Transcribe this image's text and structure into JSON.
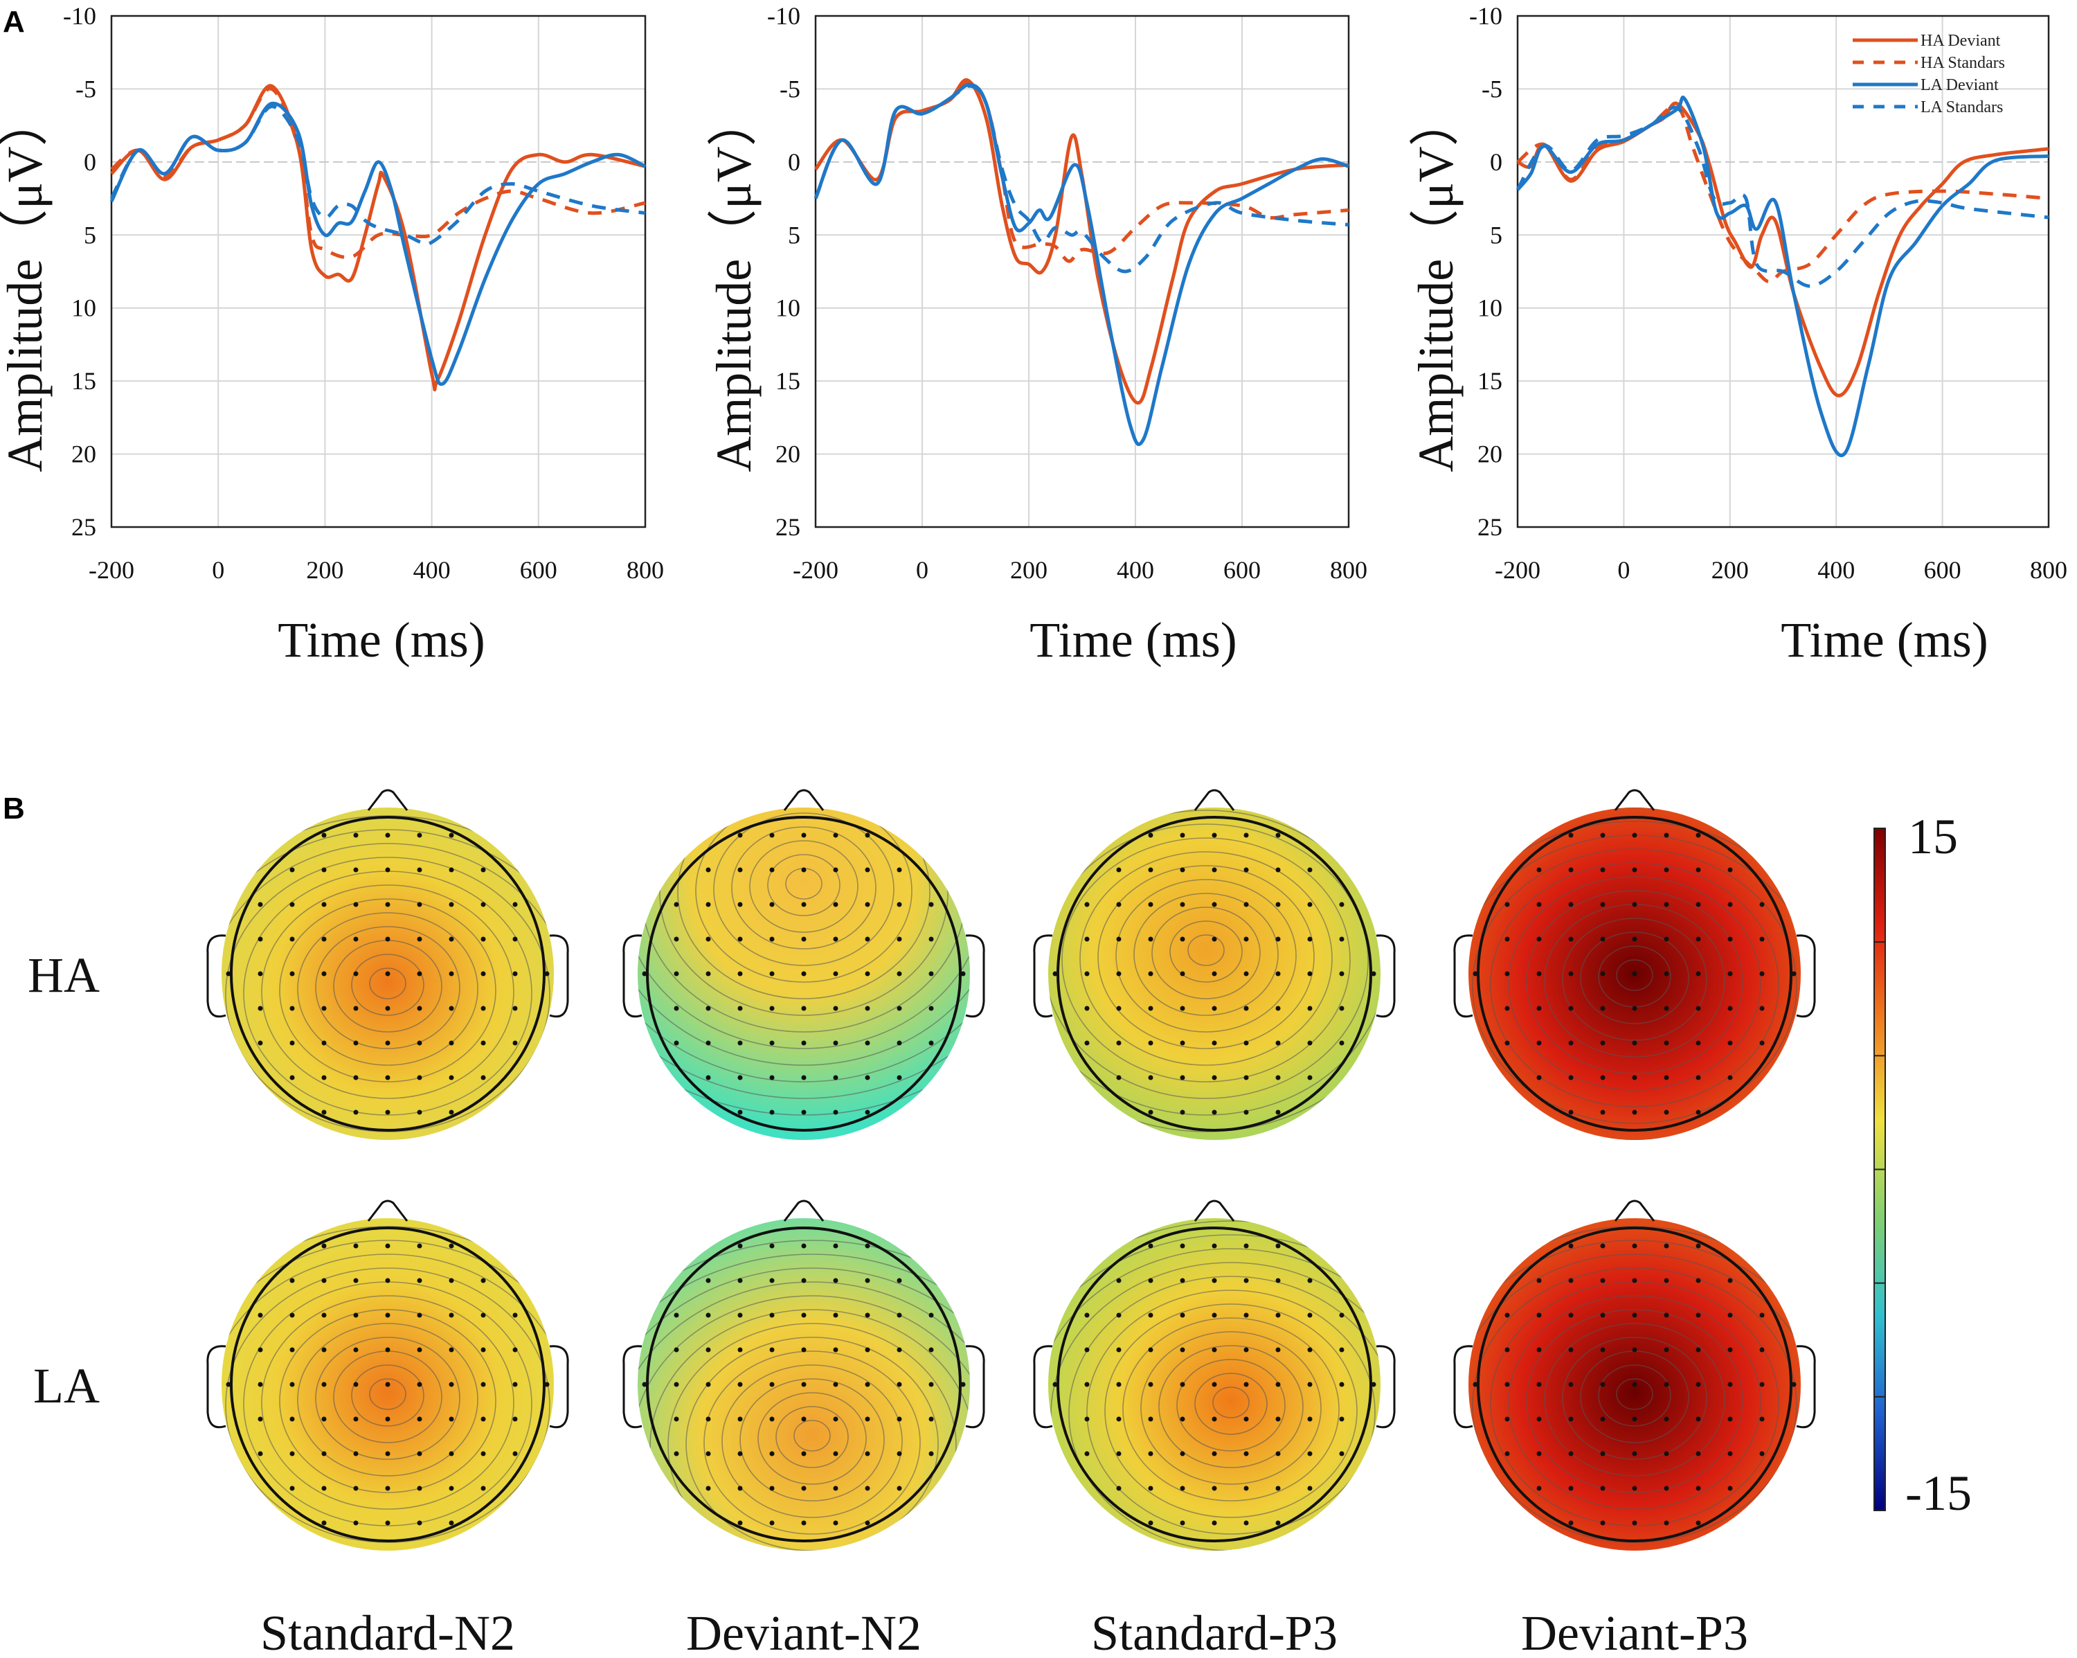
{
  "panel_labels": {
    "a": "A",
    "b": "B"
  },
  "chart_data": [
    {
      "type": "line",
      "xlabel": "Time (ms)",
      "ylabel": "Amplitude（μV）",
      "xlim": [
        -200,
        800
      ],
      "ylim": [
        -10,
        25
      ],
      "y_inverted": true,
      "grid": true,
      "xticks": [
        "-200",
        "0",
        "200",
        "400",
        "600",
        "800"
      ],
      "yticks": [
        "-10",
        "-5",
        "0",
        "5",
        "10",
        "15",
        "20",
        "25"
      ],
      "series": [
        {
          "name": "HA Deviant",
          "color": "#e0501e",
          "dash": false,
          "x": [
            -200,
            -150,
            -100,
            -50,
            0,
            50,
            100,
            150,
            175,
            200,
            225,
            250,
            275,
            300,
            310,
            350,
            400,
            410,
            450,
            500,
            550,
            600,
            650,
            700,
            800
          ],
          "y": [
            0.8,
            -0.8,
            1.2,
            -1,
            -1.5,
            -2.5,
            -5.2,
            -1,
            6,
            7.8,
            7.7,
            8,
            5,
            1.5,
            1,
            5,
            14.5,
            15,
            11,
            5,
            0.5,
            -0.5,
            0,
            -0.5,
            0.3
          ]
        },
        {
          "name": "HA Standars",
          "color": "#e0501e",
          "dash": true,
          "x": [
            -200,
            -150,
            -100,
            -50,
            0,
            50,
            100,
            150,
            175,
            200,
            250,
            300,
            350,
            400,
            450,
            500,
            550,
            600,
            700,
            800
          ],
          "y": [
            0.5,
            -0.8,
            1,
            -1,
            -1.5,
            -2.5,
            -5,
            -1,
            5,
            6,
            6.5,
            5,
            5,
            5,
            3.5,
            2.5,
            2,
            2.5,
            3.5,
            2.8
          ]
        },
        {
          "name": "LA Deviant",
          "color": "#1f78c8",
          "dash": false,
          "x": [
            -200,
            -150,
            -100,
            -50,
            0,
            50,
            100,
            150,
            175,
            200,
            225,
            250,
            275,
            300,
            325,
            350,
            400,
            420,
            450,
            500,
            550,
            600,
            650,
            700,
            750,
            800
          ],
          "y": [
            2.7,
            -0.8,
            0.8,
            -1.7,
            -0.8,
            -1.3,
            -4,
            -2,
            3,
            5,
            4.2,
            4.1,
            2,
            0,
            2,
            6,
            13.5,
            15.2,
            13,
            8,
            4,
            1.5,
            0.8,
            0,
            -0.5,
            0.3
          ]
        },
        {
          "name": "LA Standars",
          "color": "#1f78c8",
          "dash": true,
          "x": [
            -200,
            -150,
            -100,
            -50,
            0,
            50,
            100,
            150,
            175,
            200,
            225,
            250,
            275,
            300,
            350,
            380,
            400,
            450,
            500,
            550,
            600,
            700,
            800
          ],
          "y": [
            2.5,
            -0.8,
            0.8,
            -1.7,
            -0.8,
            -1.3,
            -3.8,
            -1.5,
            2.5,
            3.8,
            3,
            3,
            4,
            4.5,
            5,
            5.5,
            5.5,
            4,
            2,
            1.5,
            2,
            3,
            3.5
          ]
        }
      ]
    },
    {
      "type": "line",
      "xlabel": "Time (ms)",
      "ylabel": "Amplitude（μV）",
      "xlim": [
        -200,
        800
      ],
      "ylim": [
        -10,
        25
      ],
      "y_inverted": true,
      "grid": true,
      "xticks": [
        "-200",
        "0",
        "200",
        "400",
        "600",
        "800"
      ],
      "yticks": [
        "-10",
        "-5",
        "0",
        "5",
        "10",
        "15",
        "20",
        "25"
      ],
      "series": [
        {
          "name": "HA Deviant",
          "color": "#e0501e",
          "dash": false,
          "x": [
            -200,
            -150,
            -85,
            -50,
            0,
            50,
            85,
            120,
            150,
            175,
            200,
            225,
            250,
            280,
            300,
            330,
            370,
            405,
            430,
            470,
            500,
            550,
            600,
            700,
            800
          ],
          "y": [
            0.5,
            -1.5,
            1.2,
            -3,
            -3.5,
            -4.2,
            -5.6,
            -3,
            3,
            6.5,
            7,
            7.5,
            5,
            -1.7,
            1,
            8,
            14,
            16.5,
            14,
            8,
            4,
            2,
            1.5,
            0.5,
            0.2
          ]
        },
        {
          "name": "HA Standars",
          "color": "#e0501e",
          "dash": true,
          "x": [
            -200,
            -150,
            -85,
            -50,
            0,
            50,
            85,
            120,
            150,
            175,
            225,
            250,
            275,
            300,
            350,
            400,
            450,
            500,
            600,
            650,
            700,
            800
          ],
          "y": [
            0.5,
            -1.5,
            1.2,
            -3,
            -3.5,
            -4.2,
            -5.4,
            -4,
            1,
            5.5,
            5.6,
            5.8,
            6.8,
            6,
            6.2,
            4.5,
            3,
            2.8,
            3,
            3.8,
            3.6,
            3.3
          ]
        },
        {
          "name": "LA Deviant",
          "color": "#1f78c8",
          "dash": false,
          "x": [
            -200,
            -150,
            -85,
            -50,
            0,
            50,
            90,
            120,
            150,
            175,
            200,
            220,
            240,
            285,
            310,
            350,
            390,
            415,
            450,
            500,
            550,
            600,
            650,
            700,
            750,
            800
          ],
          "y": [
            2.5,
            -1.5,
            1.5,
            -3.5,
            -3.3,
            -4.3,
            -5.3,
            -4,
            1,
            4.5,
            4.2,
            3.3,
            3.8,
            0.2,
            3,
            11,
            18,
            19,
            14,
            7,
            3.5,
            2.5,
            1.5,
            0.5,
            -0.2,
            0.3
          ]
        },
        {
          "name": "LA Standars",
          "color": "#1f78c8",
          "dash": true,
          "x": [
            -200,
            -150,
            -85,
            -50,
            0,
            50,
            90,
            120,
            150,
            175,
            200,
            225,
            250,
            280,
            300,
            340,
            380,
            420,
            470,
            550,
            600,
            700,
            800
          ],
          "y": [
            2.5,
            -1.5,
            1.5,
            -3.5,
            -3.3,
            -4.3,
            -5.2,
            -4,
            0.5,
            3,
            4,
            5.5,
            4.5,
            5,
            4.8,
            6.5,
            7.5,
            6.5,
            4,
            2.8,
            3.5,
            4,
            4.3
          ]
        }
      ]
    },
    {
      "type": "line",
      "xlabel": "Time (ms)",
      "ylabel": "Amplitude（μV）",
      "xlim": [
        -200,
        800
      ],
      "ylim": [
        -10,
        25
      ],
      "y_inverted": true,
      "grid": true,
      "legend": "top-right",
      "xticks": [
        "-200",
        "0",
        "200",
        "400",
        "600",
        "800"
      ],
      "yticks": [
        "-10",
        "-5",
        "0",
        "5",
        "10",
        "15",
        "20",
        "25"
      ],
      "series": [
        {
          "name": "HA Deviant",
          "color": "#e0501e",
          "dash": false,
          "x": [
            -200,
            -175,
            -150,
            -100,
            -50,
            0,
            50,
            75,
            100,
            140,
            160,
            190,
            210,
            240,
            260,
            285,
            320,
            370,
            405,
            440,
            480,
            520,
            560,
            600,
            640,
            700,
            800
          ],
          "y": [
            0,
            0.3,
            -1.2,
            1.3,
            -0.8,
            -1.4,
            -2.5,
            -3,
            -4,
            -2,
            0,
            4,
            5.5,
            7.2,
            5,
            4,
            9,
            14,
            16,
            14,
            9,
            5,
            3,
            1.5,
            0,
            -0.5,
            -0.9
          ]
        },
        {
          "name": "HA Standars",
          "color": "#e0501e",
          "dash": true,
          "x": [
            -200,
            -150,
            -100,
            -50,
            0,
            50,
            100,
            130,
            160,
            200,
            250,
            275,
            300,
            350,
            400,
            450,
            500,
            600,
            700,
            800
          ],
          "y": [
            0,
            -1.2,
            1.2,
            -1,
            -1.5,
            -2.5,
            -3.8,
            -1,
            2,
            5.5,
            7.5,
            8.2,
            7.5,
            7,
            5,
            3,
            2.2,
            2,
            2.2,
            2.5
          ]
        },
        {
          "name": "LA Deviant",
          "color": "#1f78c8",
          "dash": false,
          "x": [
            -200,
            -175,
            -150,
            -100,
            -50,
            0,
            50,
            100,
            115,
            150,
            175,
            200,
            230,
            250,
            285,
            320,
            370,
            415,
            460,
            500,
            550,
            600,
            650,
            700,
            800
          ],
          "y": [
            1.9,
            0.8,
            -1.1,
            0.7,
            -1.2,
            -1.5,
            -2.5,
            -3.6,
            -4.3,
            -1,
            3.5,
            3.5,
            3,
            4.6,
            2.7,
            9,
            17,
            20,
            14,
            8,
            5.5,
            3,
            1.5,
            -0.1,
            -0.4
          ]
        },
        {
          "name": "LA Standars",
          "color": "#1f78c8",
          "dash": true,
          "x": [
            -200,
            -150,
            -100,
            -50,
            0,
            50,
            100,
            140,
            170,
            200,
            230,
            250,
            300,
            350,
            400,
            450,
            500,
            550,
            600,
            650,
            800
          ],
          "y": [
            1.9,
            -1.1,
            0.6,
            -1.5,
            -1.8,
            -2.5,
            -3.7,
            -1,
            2.5,
            2.8,
            2.5,
            7,
            7.5,
            8.5,
            7.5,
            5.5,
            3.5,
            2.7,
            2.8,
            3.2,
            3.8
          ]
        }
      ]
    }
  ],
  "topomaps": {
    "rows": [
      "HA",
      "LA"
    ],
    "columns": [
      "Standard-N2",
      "Deviant-N2",
      "Standard-P3",
      "Deviant-P3"
    ],
    "colorbar": {
      "max_label": "15",
      "min_label": "-15",
      "range": [
        -15,
        15
      ],
      "colors": [
        "#800000",
        "#e02010",
        "#f08020",
        "#f0e040",
        "#80d070",
        "#30c0d0",
        "#2060d0",
        "#000080"
      ]
    },
    "maps": [
      {
        "row": "HA",
        "column": "Standard-N2",
        "center_color": "#ef7a1c",
        "edge_color": "#c8e060"
      },
      {
        "row": "HA",
        "column": "Deviant-N2",
        "center_color": "#f4c040",
        "edge_color": "#40e0c0"
      },
      {
        "row": "HA",
        "column": "Standard-P3",
        "center_color": "#f0a428",
        "edge_color": "#7cd870"
      },
      {
        "row": "HA",
        "column": "Deviant-P3",
        "center_color": "#6a0000",
        "edge_color": "#f08a20"
      },
      {
        "row": "LA",
        "column": "Standard-N2",
        "center_color": "#ef7a1c",
        "edge_color": "#d8e450"
      },
      {
        "row": "LA",
        "column": "Deviant-N2",
        "center_color": "#f0a030",
        "edge_color": "#50e0b8"
      },
      {
        "row": "LA",
        "column": "Standard-P3",
        "center_color": "#f07a18",
        "edge_color": "#90dc68"
      },
      {
        "row": "LA",
        "column": "Deviant-P3",
        "center_color": "#6a0000",
        "edge_color": "#f08a20"
      }
    ]
  }
}
